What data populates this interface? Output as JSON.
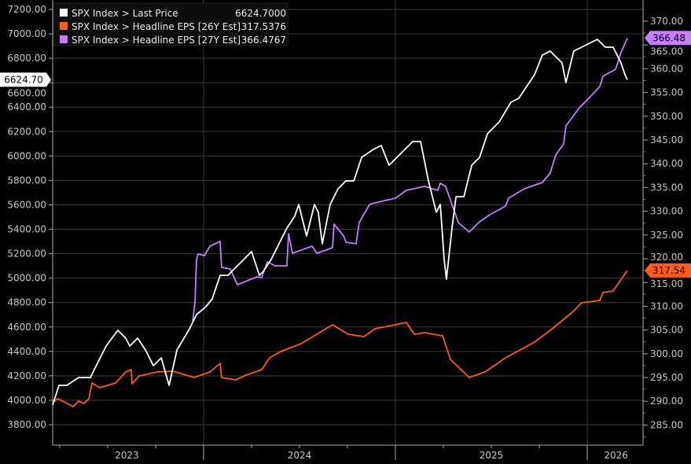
{
  "chart_data": {
    "type": "line",
    "title": "",
    "x_unit": "decimal year",
    "xlim": [
      2023.2,
      2026.29
    ],
    "x_ticks": [
      {
        "label": "2023",
        "at": 2023.6
      },
      {
        "label": "2024",
        "at": 2024.5
      },
      {
        "label": "2025",
        "at": 2025.5
      },
      {
        "label": "2026",
        "at": 2026.15
      }
    ],
    "year_boundaries": [
      2024,
      2025,
      2026
    ],
    "left_axis": {
      "ylim": [
        3700,
        7250
      ],
      "ticks": [
        3800,
        4000,
        4200,
        4400,
        4600,
        4800,
        5000,
        5200,
        5400,
        5600,
        5800,
        6000,
        6200,
        6400,
        6600,
        6800,
        7000,
        7200
      ],
      "tick_format": "2dp"
    },
    "right_axis": {
      "ylim": [
        282.5,
        371
      ],
      "ticks": [
        285,
        290,
        295,
        300,
        305,
        310,
        315,
        320,
        325,
        330,
        335,
        340,
        345,
        350,
        355,
        360,
        365,
        370
      ],
      "tick_format": "2dp"
    },
    "grid": true,
    "legend_placement": "top-left",
    "series": [
      {
        "name": "SPX Index > Last Price",
        "last": "6624.7000",
        "marker": "6624.70",
        "axis": "left",
        "color": "#ffffff",
        "points": [
          [
            2023.213,
            3961
          ],
          [
            2023.246,
            4122
          ],
          [
            2023.287,
            4122
          ],
          [
            2023.348,
            4186
          ],
          [
            2023.41,
            4186
          ],
          [
            2023.43,
            4251
          ],
          [
            2023.492,
            4444
          ],
          [
            2023.553,
            4573
          ],
          [
            2023.594,
            4508
          ],
          [
            2023.615,
            4444
          ],
          [
            2023.656,
            4508
          ],
          [
            2023.697,
            4412
          ],
          [
            2023.738,
            4283
          ],
          [
            2023.779,
            4347
          ],
          [
            2023.82,
            4122
          ],
          [
            2023.861,
            4412
          ],
          [
            2023.922,
            4573
          ],
          [
            2023.963,
            4701
          ],
          [
            2024.012,
            4766
          ],
          [
            2024.045,
            4830
          ],
          [
            2024.086,
            5023
          ],
          [
            2024.127,
            5023
          ],
          [
            2024.168,
            5088
          ],
          [
            2024.209,
            5152
          ],
          [
            2024.25,
            5217
          ],
          [
            2024.291,
            5023
          ],
          [
            2024.311,
            5055
          ],
          [
            2024.352,
            5152
          ],
          [
            2024.393,
            5281
          ],
          [
            2024.434,
            5410
          ],
          [
            2024.475,
            5506
          ],
          [
            2024.496,
            5603
          ],
          [
            2024.537,
            5345
          ],
          [
            2024.578,
            5603
          ],
          [
            2024.598,
            5539
          ],
          [
            2024.619,
            5281
          ],
          [
            2024.66,
            5603
          ],
          [
            2024.701,
            5732
          ],
          [
            2024.742,
            5796
          ],
          [
            2024.783,
            5796
          ],
          [
            2024.824,
            5989
          ],
          [
            2024.885,
            6054
          ],
          [
            2024.926,
            6086
          ],
          [
            2024.967,
            5925
          ],
          [
            2025.008,
            5989
          ],
          [
            2025.049,
            6054
          ],
          [
            2025.09,
            6118
          ],
          [
            2025.131,
            6118
          ],
          [
            2025.172,
            5796
          ],
          [
            2025.213,
            5539
          ],
          [
            2025.234,
            5603
          ],
          [
            2025.254,
            5152
          ],
          [
            2025.266,
            4991
          ],
          [
            2025.295,
            5410
          ],
          [
            2025.316,
            5667
          ],
          [
            2025.357,
            5667
          ],
          [
            2025.398,
            5925
          ],
          [
            2025.439,
            5989
          ],
          [
            2025.48,
            6182
          ],
          [
            2025.541,
            6279
          ],
          [
            2025.602,
            6440
          ],
          [
            2025.643,
            6472
          ],
          [
            2025.684,
            6569
          ],
          [
            2025.725,
            6665
          ],
          [
            2025.766,
            6826
          ],
          [
            2025.807,
            6859
          ],
          [
            2025.828,
            6826
          ],
          [
            2025.869,
            6762
          ],
          [
            2025.889,
            6601
          ],
          [
            2025.93,
            6859
          ],
          [
            2025.971,
            6891
          ],
          [
            2026.012,
            6923
          ],
          [
            2026.053,
            6955
          ],
          [
            2026.094,
            6891
          ],
          [
            2026.135,
            6891
          ],
          [
            2026.156,
            6826
          ],
          [
            2026.176,
            6762
          ],
          [
            2026.197,
            6665
          ],
          [
            2026.209,
            6624.7
          ]
        ]
      },
      {
        "name": "SPX Index > Headline EPS [26Y Est]",
        "last": "317.5376",
        "marker": "317.54",
        "axis": "right",
        "color": "#ff5a1f",
        "points": [
          [
            2023.213,
            289.7
          ],
          [
            2023.238,
            290.53
          ],
          [
            2023.266,
            290.03
          ],
          [
            2023.32,
            288.87
          ],
          [
            2023.348,
            290.03
          ],
          [
            2023.377,
            289.54
          ],
          [
            2023.402,
            290.53
          ],
          [
            2023.418,
            293.84
          ],
          [
            2023.459,
            292.85
          ],
          [
            2023.541,
            293.84
          ],
          [
            2023.594,
            296.16
          ],
          [
            2023.623,
            296.66
          ],
          [
            2023.627,
            293.68
          ],
          [
            2023.664,
            295.33
          ],
          [
            2023.758,
            296.16
          ],
          [
            2023.84,
            296.33
          ],
          [
            2023.951,
            295.0
          ],
          [
            2024.033,
            296.16
          ],
          [
            2024.086,
            297.98
          ],
          [
            2024.094,
            295.0
          ],
          [
            2024.168,
            294.5
          ],
          [
            2024.221,
            295.5
          ],
          [
            2024.303,
            296.66
          ],
          [
            2024.344,
            299.14
          ],
          [
            2024.402,
            300.46
          ],
          [
            2024.508,
            302.12
          ],
          [
            2024.59,
            304.11
          ],
          [
            2024.672,
            306.09
          ],
          [
            2024.754,
            304.11
          ],
          [
            2024.836,
            303.61
          ],
          [
            2024.893,
            305.26
          ],
          [
            2025.0,
            306.09
          ],
          [
            2025.057,
            306.59
          ],
          [
            2025.098,
            304.11
          ],
          [
            2025.152,
            304.44
          ],
          [
            2025.246,
            303.77
          ],
          [
            2025.287,
            298.81
          ],
          [
            2025.385,
            295.0
          ],
          [
            2025.467,
            296.16
          ],
          [
            2025.574,
            299.14
          ],
          [
            2025.725,
            302.45
          ],
          [
            2025.807,
            304.93
          ],
          [
            2025.918,
            308.58
          ],
          [
            2025.971,
            310.73
          ],
          [
            2026.066,
            311.23
          ],
          [
            2026.082,
            312.88
          ],
          [
            2026.135,
            313.21
          ],
          [
            2026.209,
            317.54
          ]
        ]
      },
      {
        "name": "SPX Index > Headline EPS [27Y Est]",
        "last": "366.4767",
        "marker": "366.48",
        "axis": "right",
        "color": "#c77dff",
        "points": [
          [
            2023.943,
            306.92
          ],
          [
            2023.955,
            310.73
          ],
          [
            2023.963,
            319.83
          ],
          [
            2023.971,
            321.0
          ],
          [
            2024.004,
            320.66
          ],
          [
            2024.033,
            322.65
          ],
          [
            2024.086,
            323.64
          ],
          [
            2024.094,
            318.18
          ],
          [
            2024.139,
            317.85
          ],
          [
            2024.176,
            314.54
          ],
          [
            2024.279,
            316.19
          ],
          [
            2024.303,
            316.03
          ],
          [
            2024.332,
            319.34
          ],
          [
            2024.373,
            318.51
          ],
          [
            2024.434,
            318.51
          ],
          [
            2024.443,
            325.3
          ],
          [
            2024.463,
            321.16
          ],
          [
            2024.566,
            322.65
          ],
          [
            2024.59,
            321.16
          ],
          [
            2024.672,
            322.32
          ],
          [
            2024.68,
            327.28
          ],
          [
            2024.73,
            324.8
          ],
          [
            2024.742,
            323.48
          ],
          [
            2024.795,
            323.15
          ],
          [
            2024.811,
            327.62
          ],
          [
            2024.865,
            331.42
          ],
          [
            2024.893,
            331.75
          ],
          [
            2025.0,
            332.75
          ],
          [
            2025.057,
            334.4
          ],
          [
            2025.152,
            335.23
          ],
          [
            2025.221,
            334.4
          ],
          [
            2025.234,
            335.89
          ],
          [
            2025.262,
            335.23
          ],
          [
            2025.328,
            327.62
          ],
          [
            2025.385,
            325.63
          ],
          [
            2025.439,
            327.78
          ],
          [
            2025.492,
            329.27
          ],
          [
            2025.574,
            331.09
          ],
          [
            2025.59,
            332.75
          ],
          [
            2025.672,
            334.73
          ],
          [
            2025.766,
            336.06
          ],
          [
            2025.807,
            338.05
          ],
          [
            2025.836,
            341.85
          ],
          [
            2025.877,
            344.17
          ],
          [
            2025.889,
            347.98
          ],
          [
            2025.959,
            351.79
          ],
          [
            2026.0,
            353.44
          ],
          [
            2026.066,
            356.26
          ],
          [
            2026.082,
            358.41
          ],
          [
            2026.148,
            359.9
          ],
          [
            2026.176,
            363.38
          ],
          [
            2026.209,
            366.48
          ]
        ]
      }
    ]
  }
}
